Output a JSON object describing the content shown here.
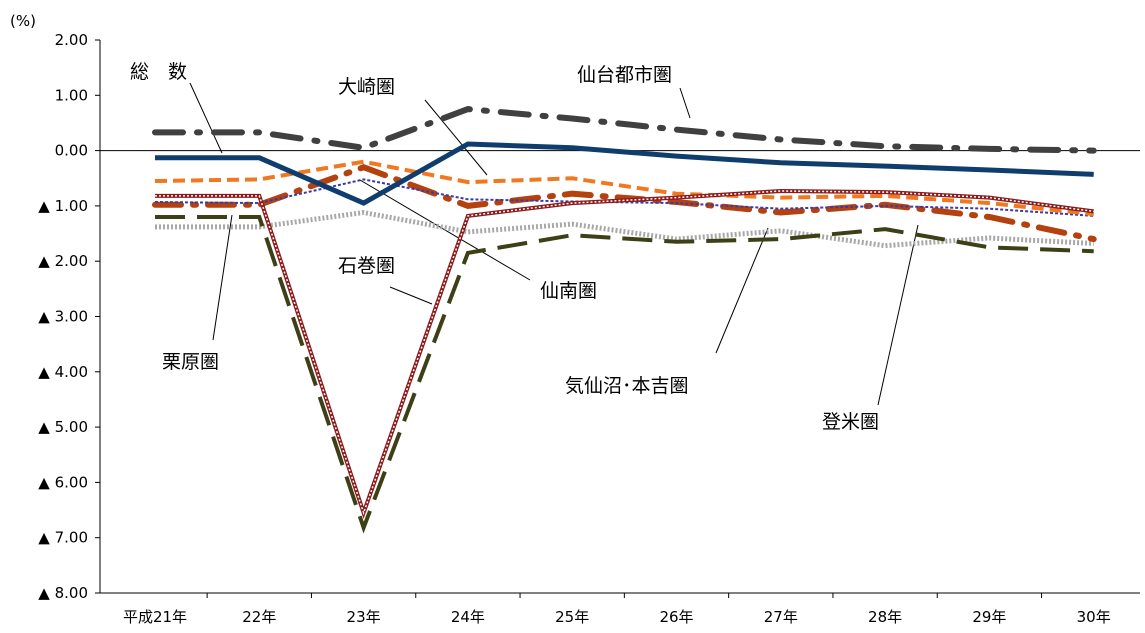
{
  "chart_data": {
    "type": "line",
    "unit_label": "(%)",
    "categories": [
      "平成21年",
      "22年",
      "23年",
      "24年",
      "25年",
      "26年",
      "27年",
      "28年",
      "29年",
      "30年"
    ],
    "ylim": [
      -8,
      2
    ],
    "y_ticks": [
      {
        "value": 2,
        "label": "2.00"
      },
      {
        "value": 1,
        "label": "1.00"
      },
      {
        "value": 0,
        "label": "0.00"
      },
      {
        "value": -1,
        "label": "▲ 1.00"
      },
      {
        "value": -2,
        "label": "▲ 2.00"
      },
      {
        "value": -3,
        "label": "▲ 3.00"
      },
      {
        "value": -4,
        "label": "▲ 4.00"
      },
      {
        "value": -5,
        "label": "▲ 5.00"
      },
      {
        "value": -6,
        "label": "▲ 6.00"
      },
      {
        "value": -7,
        "label": "▲ 7.00"
      },
      {
        "value": -8,
        "label": "▲ 8.00"
      }
    ],
    "series": [
      {
        "name": "総　数",
        "color": "#0f3d6e",
        "values": [
          -0.13,
          -0.13,
          -0.95,
          0.12,
          0.05,
          -0.1,
          -0.22,
          -0.28,
          -0.35,
          -0.43
        ]
      },
      {
        "name": "仙台都市圏",
        "color": "#404040",
        "values": [
          0.33,
          0.33,
          0.05,
          0.75,
          0.58,
          0.38,
          0.2,
          0.08,
          0.03,
          0.0
        ]
      },
      {
        "name": "大崎圏",
        "color": "#f07820",
        "values": [
          -0.55,
          -0.52,
          -0.2,
          -0.57,
          -0.5,
          -0.78,
          -0.85,
          -0.82,
          -0.95,
          -1.15
        ]
      },
      {
        "name": "仙南圏",
        "color": "#3a3aaa",
        "values": [
          -0.93,
          -0.95,
          -0.52,
          -0.88,
          -0.92,
          -0.95,
          -1.05,
          -1.0,
          -1.05,
          -1.18
        ]
      },
      {
        "name": "石巻圏",
        "color": "#8b1a1a",
        "values": [
          -0.82,
          -0.82,
          -6.55,
          -1.18,
          -0.95,
          -0.85,
          -0.73,
          -0.75,
          -0.85,
          -1.1
        ]
      },
      {
        "name": "栗原圏",
        "color": "#a8a8a8",
        "values": [
          -1.38,
          -1.38,
          -1.12,
          -1.47,
          -1.33,
          -1.6,
          -1.45,
          -1.72,
          -1.58,
          -1.68
        ]
      },
      {
        "name": "気仙沼･本吉圏",
        "color": "#3d4016",
        "values": [
          -1.2,
          -1.2,
          -6.82,
          -1.85,
          -1.53,
          -1.65,
          -1.6,
          -1.42,
          -1.75,
          -1.82
        ]
      },
      {
        "name": "登米圏",
        "color": "#b5410f",
        "values": [
          -0.98,
          -0.98,
          -0.3,
          -1.0,
          -0.78,
          -0.93,
          -1.12,
          -0.98,
          -1.2,
          -1.6
        ]
      }
    ],
    "annotations": [
      {
        "text": "総　数"
      },
      {
        "text": "仙台都市圏"
      },
      {
        "text": "大崎圏"
      },
      {
        "text": "仙南圏"
      },
      {
        "text": "石巻圏"
      },
      {
        "text": "栗原圏"
      },
      {
        "text": "気仙沼･本吉圏"
      },
      {
        "text": "登米圏"
      }
    ]
  }
}
